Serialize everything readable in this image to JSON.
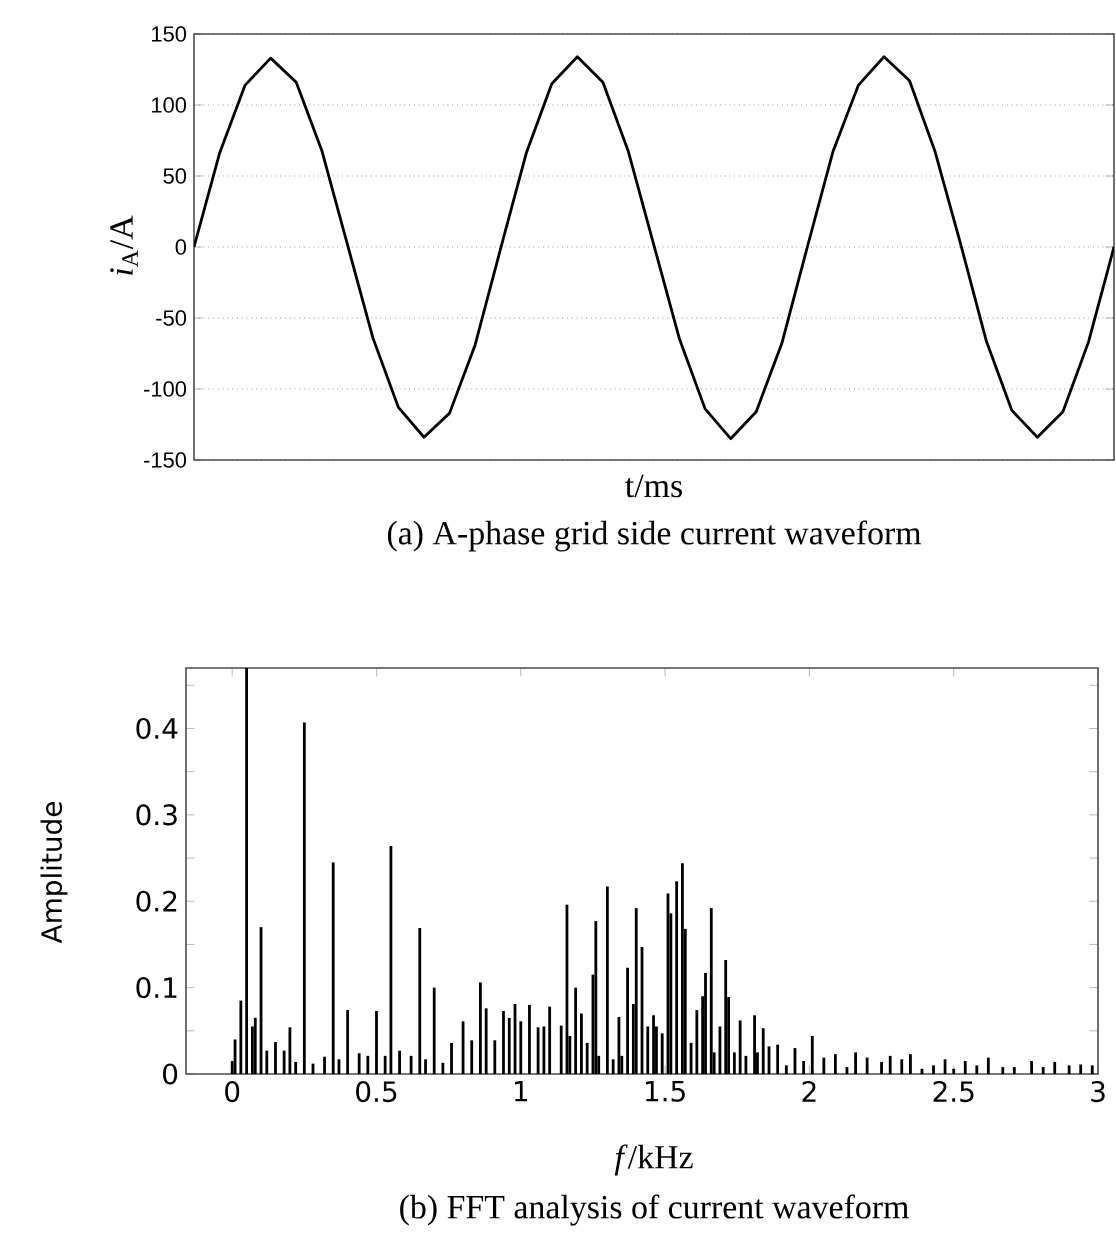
{
  "chart_data": [
    {
      "type": "line",
      "ylabel": "*i*$_{A}$/A",
      "xlabel": "t/ms",
      "annotations": [
        "(a) A-phase grid side current waveform"
      ],
      "categories": [
        null,
        null,
        null,
        null,
        null,
        null,
        null,
        null,
        null,
        null,
        null,
        null,
        null,
        null,
        null,
        null,
        null,
        null,
        null,
        null,
        null,
        null,
        null,
        null,
        null,
        null,
        null,
        null,
        null,
        null,
        null,
        null,
        null,
        null,
        null,
        null,
        null
      ],
      "values": [
        0,
        66,
        114,
        133,
        116,
        68,
        2,
        -64,
        -113,
        -134,
        -117,
        -69,
        -1,
        66,
        115,
        134,
        116,
        67,
        1,
        -65,
        -114,
        -135,
        -116,
        -68,
        0,
        67,
        114,
        134,
        117,
        67,
        2,
        -66,
        -115,
        -134,
        -116,
        -67,
        0
      ],
      "color": "#000000",
      "ylim": [
        -150,
        150
      ],
      "yticks": [
        -150,
        -100,
        -50,
        0,
        50,
        100,
        150
      ],
      "grid": "y",
      "tick_labels": "y"
    },
    {
      "type": "bar",
      "xlabel": "*f*/kHz",
      "ylabel": "Amplitude",
      "annotations": [
        "(b) FFT analysis of current waveform"
      ],
      "x": [
        0.0,
        0.01,
        0.03,
        0.05,
        0.07,
        0.08,
        0.1,
        0.12,
        0.15,
        0.18,
        0.2,
        0.22,
        0.25,
        0.28,
        0.32,
        0.35,
        0.37,
        0.4,
        0.44,
        0.47,
        0.5,
        0.53,
        0.55,
        0.58,
        0.62,
        0.65,
        0.67,
        0.7,
        0.73,
        0.76,
        0.8,
        0.83,
        0.86,
        0.88,
        0.91,
        0.94,
        0.96,
        0.98,
        1.0,
        1.03,
        1.06,
        1.08,
        1.1,
        1.14,
        1.16,
        1.17,
        1.19,
        1.21,
        1.23,
        1.25,
        1.26,
        1.27,
        1.3,
        1.32,
        1.34,
        1.35,
        1.37,
        1.39,
        1.4,
        1.42,
        1.44,
        1.46,
        1.47,
        1.49,
        1.51,
        1.52,
        1.54,
        1.56,
        1.57,
        1.59,
        1.61,
        1.63,
        1.64,
        1.66,
        1.67,
        1.69,
        1.71,
        1.72,
        1.74,
        1.76,
        1.78,
        1.81,
        1.82,
        1.84,
        1.86,
        1.89,
        1.92,
        1.95,
        1.98,
        2.01,
        2.05,
        2.09,
        2.13,
        2.16,
        2.2,
        2.25,
        2.28,
        2.32,
        2.35,
        2.39,
        2.43,
        2.47,
        2.5,
        2.54,
        2.58,
        2.62,
        2.67,
        2.71,
        2.77,
        2.81,
        2.85,
        2.9,
        2.94,
        2.98
      ],
      "values": [
        0.015,
        0.04,
        0.085,
        0.47,
        0.055,
        0.065,
        0.17,
        0.027,
        0.037,
        0.027,
        0.054,
        0.014,
        0.407,
        0.012,
        0.02,
        0.245,
        0.017,
        0.074,
        0.024,
        0.021,
        0.073,
        0.021,
        0.264,
        0.027,
        0.021,
        0.169,
        0.017,
        0.1,
        0.013,
        0.036,
        0.061,
        0.039,
        0.106,
        0.076,
        0.039,
        0.073,
        0.065,
        0.081,
        0.061,
        0.08,
        0.054,
        0.055,
        0.078,
        0.056,
        0.196,
        0.044,
        0.1,
        0.07,
        0.036,
        0.115,
        0.177,
        0.021,
        0.217,
        0.017,
        0.066,
        0.021,
        0.123,
        0.081,
        0.192,
        0.147,
        0.055,
        0.068,
        0.055,
        0.047,
        0.209,
        0.186,
        0.223,
        0.244,
        0.168,
        0.036,
        0.074,
        0.09,
        0.117,
        0.192,
        0.025,
        0.055,
        0.132,
        0.089,
        0.025,
        0.062,
        0.021,
        0.068,
        0.025,
        0.053,
        0.032,
        0.034,
        0.01,
        0.03,
        0.015,
        0.044,
        0.019,
        0.023,
        0.008,
        0.025,
        0.019,
        0.014,
        0.021,
        0.017,
        0.023,
        0.006,
        0.01,
        0.017,
        0.006,
        0.015,
        0.01,
        0.019,
        0.008,
        0.008,
        0.015,
        0.008,
        0.014,
        0.01,
        0.011,
        0.01
      ],
      "color": "#000000",
      "xlim": [
        -0.16,
        3
      ],
      "xticks": [
        0,
        0.5,
        1,
        1.5,
        2,
        2.5,
        3
      ],
      "ylim": [
        0,
        0.47
      ],
      "yticks": [
        0,
        {
          "value": 0.05,
          "label": null
        },
        0.1,
        {
          "value": 0.15,
          "label": null
        },
        0.2,
        {
          "value": 0.25,
          "label": null
        },
        0.3,
        {
          "value": 0.35,
          "label": null
        },
        0.4,
        {
          "value": 0.45,
          "label": null
        }
      ]
    }
  ]
}
